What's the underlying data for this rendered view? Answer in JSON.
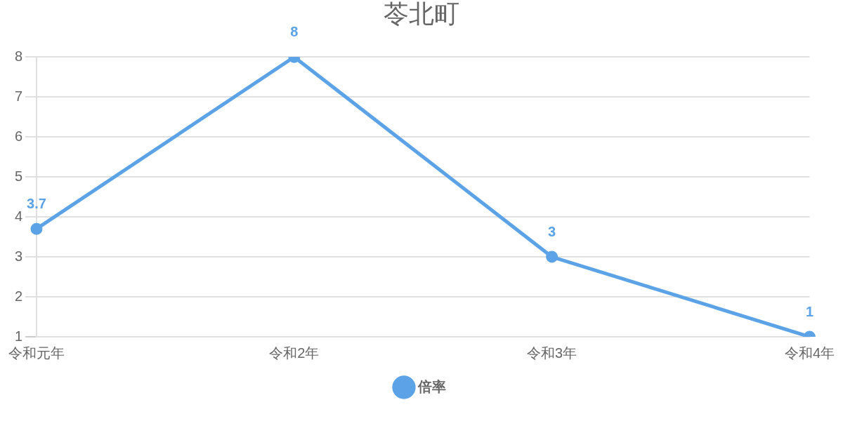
{
  "chart_data": {
    "type": "line",
    "title": "苓北町",
    "categories": [
      "令和元年",
      "令和2年",
      "令和3年",
      "令和4年"
    ],
    "series": [
      {
        "name": "倍率",
        "color": "#5ba3e6",
        "values": [
          3.7,
          8,
          3,
          1
        ]
      }
    ],
    "ylim": [
      1,
      8
    ],
    "yticks": [
      1,
      2,
      3,
      4,
      5,
      6,
      7,
      8
    ],
    "grid": "y",
    "legend": "bottom",
    "marker": "circle",
    "data_labels": true
  }
}
